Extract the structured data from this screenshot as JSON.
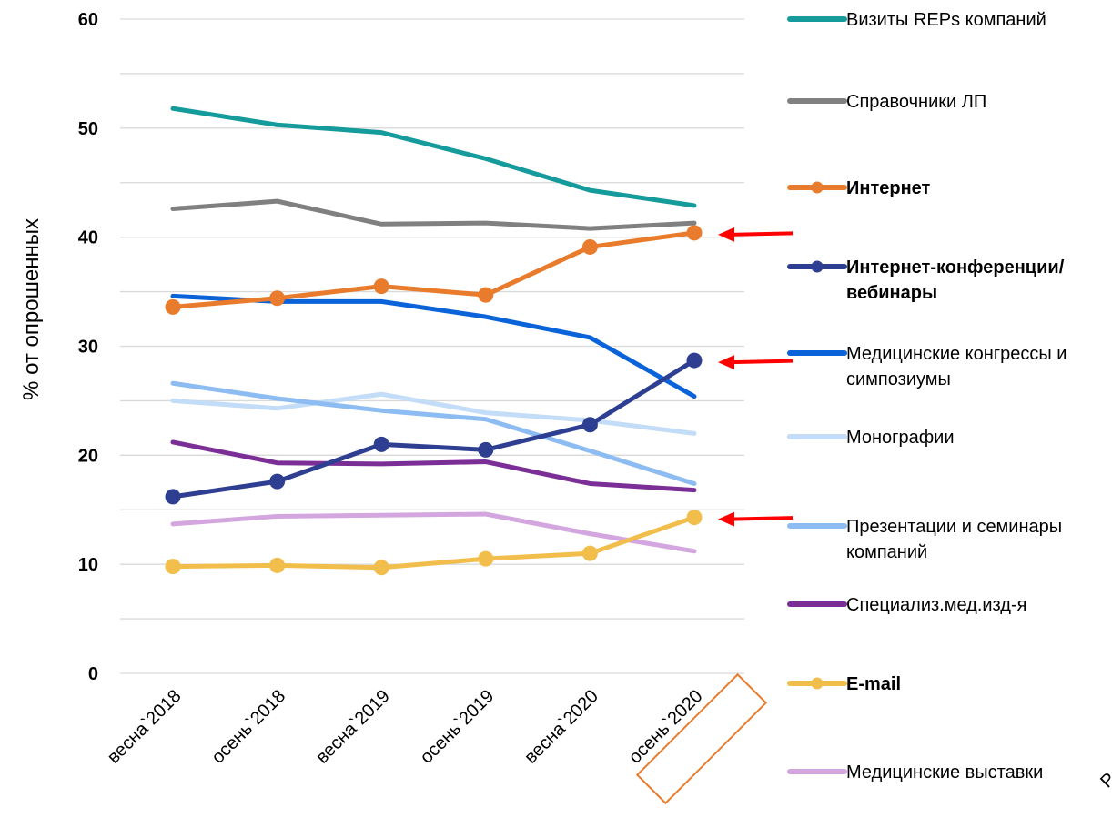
{
  "chart_data": {
    "type": "line",
    "ylabel": "% от опрошенных",
    "xlabel": "",
    "ylim": [
      0,
      60
    ],
    "yticks": [
      "0",
      "10",
      "20",
      "30",
      "40",
      "50",
      "60"
    ],
    "categories": [
      "весна`2018",
      "осень`2018",
      "весна`2019",
      "осень`2019",
      "весна`2020",
      "осень`2020"
    ],
    "grid": "horizontal",
    "legend_position": "right",
    "highlighted_category": "осень`2020",
    "series": [
      {
        "name": "Визиты REPs компаний",
        "color": "#159B9B",
        "markers": false,
        "bold": false,
        "values": [
          51.8,
          50.3,
          49.6,
          47.2,
          44.3,
          42.9
        ]
      },
      {
        "name": "Справочники ЛП",
        "color": "#808080",
        "markers": false,
        "bold": false,
        "values": [
          42.6,
          43.3,
          41.2,
          41.3,
          40.8,
          41.3
        ]
      },
      {
        "name": "Интернет",
        "color": "#E97B2C",
        "markers": true,
        "bold": true,
        "values": [
          33.6,
          34.4,
          35.5,
          34.7,
          39.1,
          40.4
        ]
      },
      {
        "name": "Интернет-конференции/ вебинары",
        "legend_lines": [
          "Интернет-конференции/",
          "вебинары"
        ],
        "color": "#2E3F92",
        "markers": true,
        "bold": true,
        "values": [
          16.2,
          17.6,
          21.0,
          20.5,
          22.8,
          28.7
        ]
      },
      {
        "name": "Медицинские конгрессы и симпозиумы",
        "legend_lines": [
          "Медицинские конгрессы и",
          "симпозиумы"
        ],
        "color": "#0A63D8",
        "markers": false,
        "bold": false,
        "values": [
          34.6,
          34.1,
          34.1,
          32.7,
          30.8,
          25.4
        ]
      },
      {
        "name": "Монографии",
        "color": "#C3DCF7",
        "markers": false,
        "bold": false,
        "values": [
          25.0,
          24.3,
          25.6,
          23.9,
          23.2,
          22.0
        ]
      },
      {
        "name": "Презентации и семинары компаний",
        "legend_lines": [
          "Презентации и семинары",
          "компаний"
        ],
        "color": "#8DBCF3",
        "markers": false,
        "bold": false,
        "values": [
          26.6,
          25.2,
          24.1,
          23.3,
          20.4,
          17.4
        ]
      },
      {
        "name": "Специализ.мед.изд-я",
        "color": "#7B2F96",
        "markers": false,
        "bold": false,
        "values": [
          21.2,
          19.3,
          19.2,
          19.4,
          17.4,
          16.8
        ]
      },
      {
        "name": "E-mail",
        "color": "#F2BE4B",
        "markers": true,
        "bold": true,
        "values": [
          9.8,
          9.9,
          9.7,
          10.5,
          11.0,
          14.3
        ]
      },
      {
        "name": "Медицинские выставки",
        "color": "#D4A6E0",
        "markers": false,
        "bold": false,
        "values": [
          13.7,
          14.4,
          14.5,
          14.6,
          12.8,
          11.2
        ]
      }
    ],
    "arrows": [
      {
        "series": "Интернет",
        "color": "#FF0000"
      },
      {
        "series": "Интернет-конференции/ вебинары",
        "color": "#FF0000"
      },
      {
        "series": "E-mail",
        "color": "#FF0000"
      }
    ],
    "edge_clipped_text": "Р"
  }
}
